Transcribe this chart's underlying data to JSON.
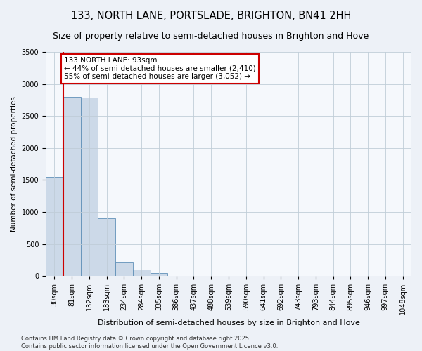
{
  "title": "133, NORTH LANE, PORTSLADE, BRIGHTON, BN41 2HH",
  "subtitle": "Size of property relative to semi-detached houses in Brighton and Hove",
  "xlabel": "Distribution of semi-detached houses by size in Brighton and Hove",
  "ylabel": "Number of semi-detached properties",
  "categories": [
    "30sqm",
    "81sqm",
    "132sqm",
    "183sqm",
    "234sqm",
    "284sqm",
    "335sqm",
    "386sqm",
    "437sqm",
    "488sqm",
    "539sqm",
    "590sqm",
    "641sqm",
    "692sqm",
    "743sqm",
    "793sqm",
    "844sqm",
    "895sqm",
    "946sqm",
    "997sqm",
    "1048sqm"
  ],
  "values": [
    1550,
    2800,
    2790,
    900,
    220,
    100,
    40,
    5,
    0,
    0,
    0,
    0,
    0,
    0,
    0,
    0,
    0,
    0,
    0,
    0,
    0
  ],
  "bar_color": "#ccd9e8",
  "bar_edge_color": "#6090b8",
  "vline_color": "#cc0000",
  "annotation_text": "133 NORTH LANE: 93sqm\n← 44% of semi-detached houses are smaller (2,410)\n55% of semi-detached houses are larger (3,052) →",
  "annotation_box_color": "#cc0000",
  "ylim": [
    0,
    3500
  ],
  "yticks": [
    0,
    500,
    1000,
    1500,
    2000,
    2500,
    3000,
    3500
  ],
  "footer": "Contains HM Land Registry data © Crown copyright and database right 2025.\nContains public sector information licensed under the Open Government Licence v3.0.",
  "title_fontsize": 10.5,
  "subtitle_fontsize": 9,
  "xlabel_fontsize": 8,
  "ylabel_fontsize": 7.5,
  "tick_fontsize": 7,
  "annotation_fontsize": 7.5,
  "footer_fontsize": 6,
  "background_color": "#edf1f7",
  "plot_background_color": "#f5f8fc",
  "grid_color": "#c0cdd8"
}
